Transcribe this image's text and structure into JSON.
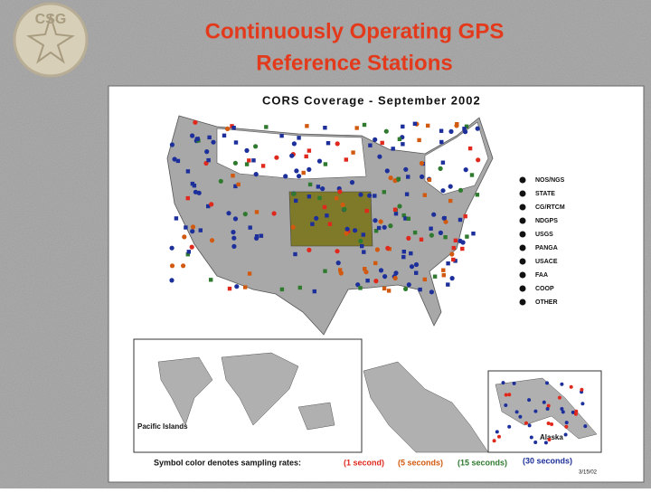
{
  "logo": "CSG",
  "header": {
    "title_lines": [
      "Continuously Operating GPS",
      "Reference Stations"
    ]
  },
  "map": {
    "title": "CORS Coverage - September 2002",
    "legend": [
      "NOS/NGS",
      "STATE",
      "CG/RTCM",
      "NDGPS",
      "USGS",
      "PANGA",
      "USACE",
      "FAA",
      "COOP",
      "OTHER"
    ],
    "insets": [
      "Pacific Islands",
      "Alaska"
    ],
    "caption": "Symbol color denotes sampling rates:",
    "rates": [
      "(1 second)",
      "(5 seconds)",
      "(15 seconds)",
      "(30 seconds)"
    ],
    "date": "3/15/02"
  }
}
